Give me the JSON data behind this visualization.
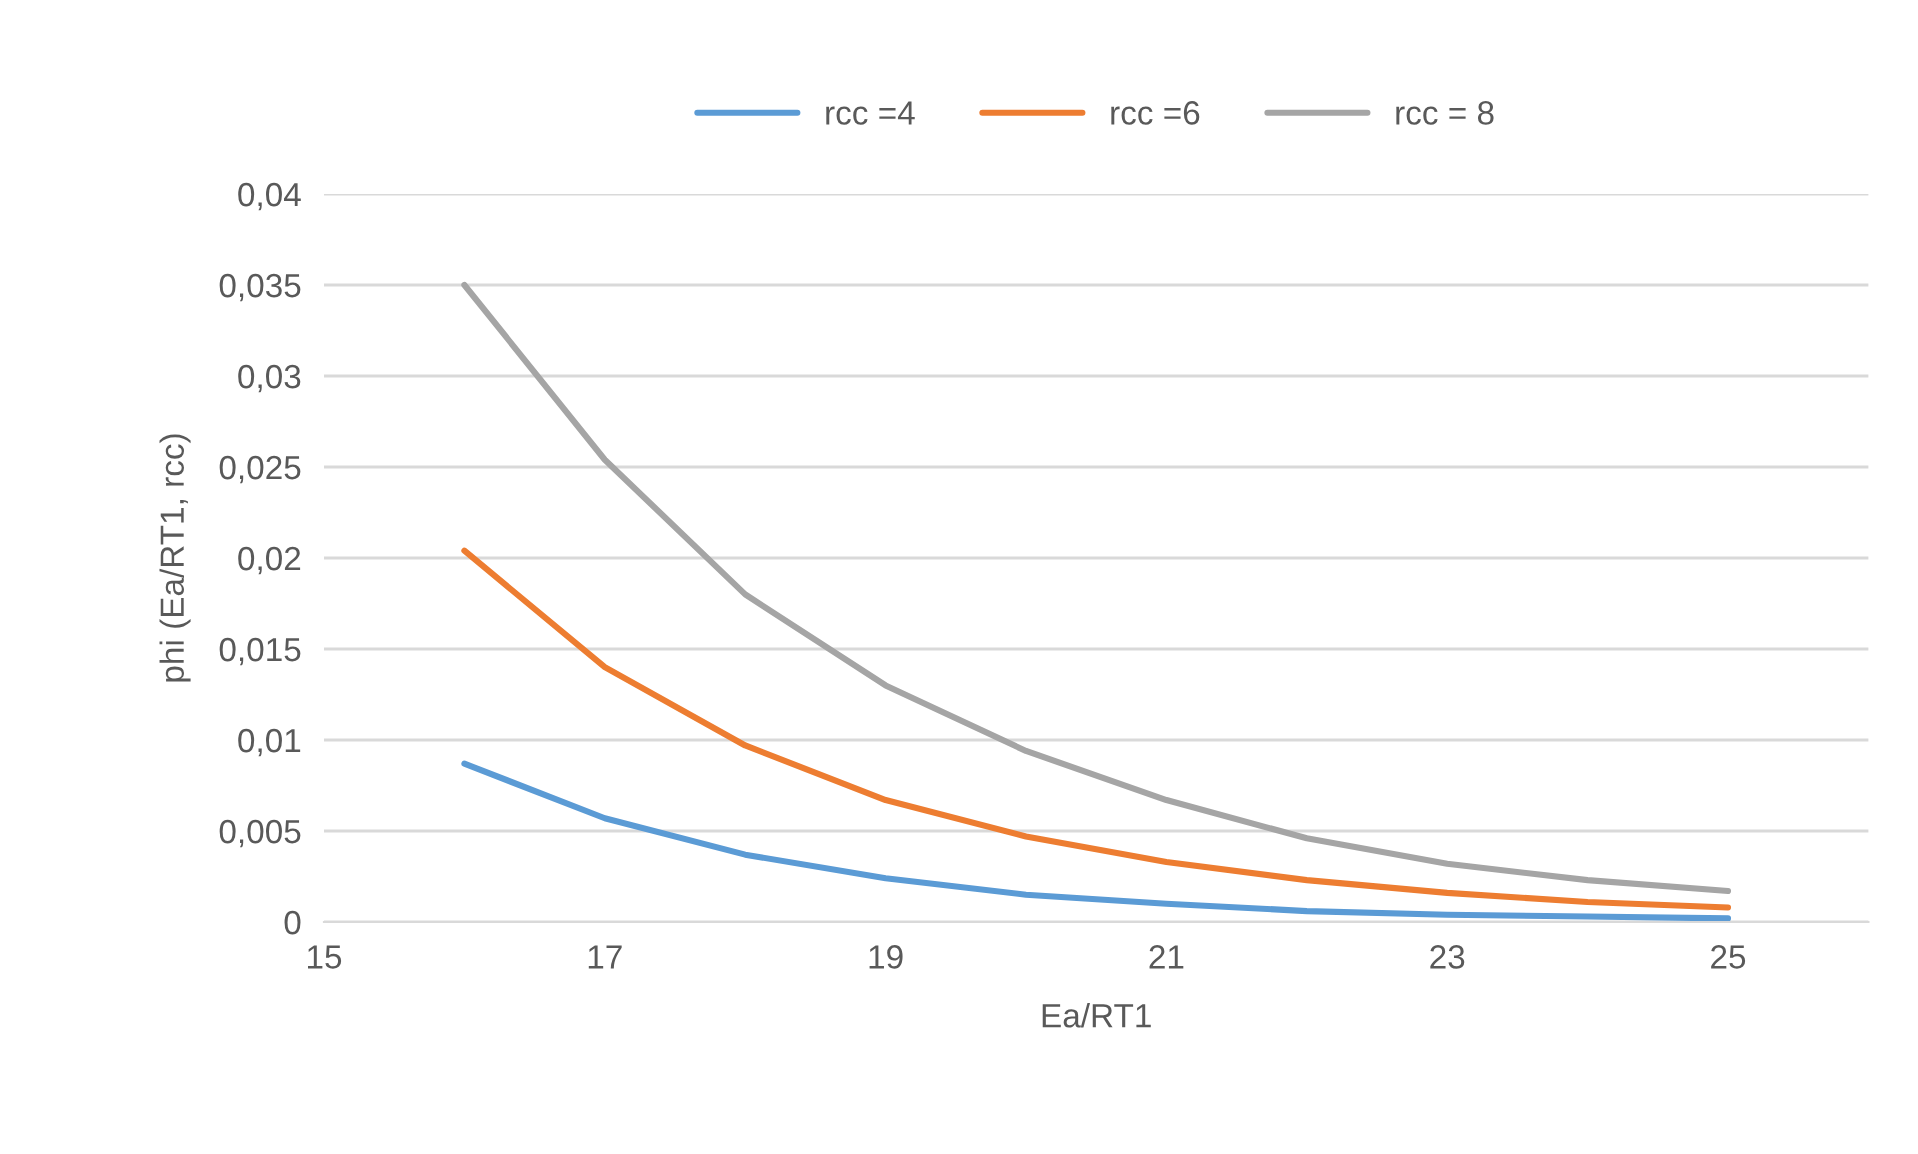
{
  "chart_data": {
    "type": "line",
    "xlabel": "Ea/RT1",
    "ylabel": "phi (Ea/RT1, rcc)",
    "series": [
      {
        "name": "rcc =4",
        "color": "#5b9bd5",
        "x": [
          16,
          17,
          18,
          19,
          20,
          21,
          22,
          23,
          24,
          25
        ],
        "values": [
          0.0087,
          0.0057,
          0.0037,
          0.0024,
          0.0015,
          0.001,
          0.0006,
          0.0004,
          0.0003,
          0.0002
        ]
      },
      {
        "name": "rcc =6",
        "color": "#ed7d31",
        "x": [
          16,
          17,
          18,
          19,
          20,
          21,
          22,
          23,
          24,
          25
        ],
        "values": [
          0.0204,
          0.014,
          0.0097,
          0.0067,
          0.0047,
          0.0033,
          0.0023,
          0.0016,
          0.0011,
          0.0008
        ]
      },
      {
        "name": "rcc = 8",
        "color": "#a5a5a5",
        "x": [
          16,
          17,
          18,
          19,
          20,
          21,
          22,
          23,
          24,
          25
        ],
        "values": [
          0.035,
          0.0254,
          0.018,
          0.013,
          0.0094,
          0.0067,
          0.0046,
          0.0032,
          0.0023,
          0.0017
        ]
      }
    ],
    "xlim": [
      15,
      26
    ],
    "xticks": [
      15,
      17,
      19,
      21,
      23,
      25
    ],
    "ylim": [
      0,
      0.04
    ],
    "yticks": [
      0,
      {
        "value": 0.005,
        "label": "0,005"
      },
      {
        "value": 0.01,
        "label": "0,01"
      },
      {
        "value": 0.015,
        "label": "0,015"
      },
      {
        "value": 0.02,
        "label": "0,02"
      },
      {
        "value": 0.025,
        "label": "0,025"
      },
      {
        "value": 0.03,
        "label": "0,03"
      },
      {
        "value": 0.035,
        "label": "0,035"
      },
      {
        "value": 0.04,
        "label": "0,04"
      }
    ],
    "grid": "y",
    "legend": "top",
    "marker": "none",
    "line_style": "solid"
  }
}
